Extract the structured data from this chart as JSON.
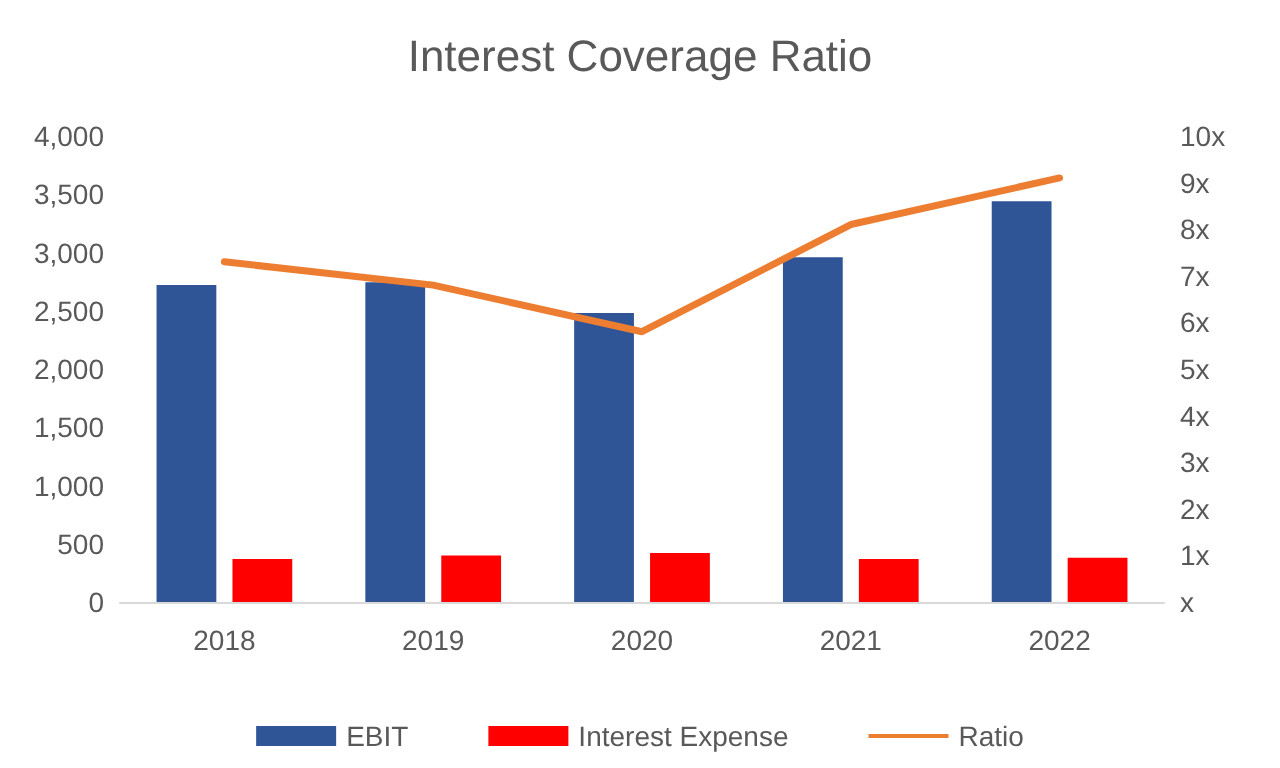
{
  "chart_data": {
    "type": "bar",
    "title": "Interest Coverage Ratio",
    "categories": [
      "2018",
      "2019",
      "2020",
      "2021",
      "2022"
    ],
    "series": [
      {
        "name": "EBIT",
        "color": "#2f5597",
        "values": [
          2720,
          2745,
          2480,
          2960,
          3440
        ]
      },
      {
        "name": "Interest Expense",
        "color": "#ff0000",
        "values": [
          370,
          400,
          420,
          370,
          380
        ]
      },
      {
        "name": "Ratio",
        "type": "line",
        "axis": "y2",
        "color": "#ed7d31",
        "values": [
          7.3,
          6.8,
          5.8,
          8.1,
          9.1
        ]
      }
    ],
    "ylim": [
      0,
      4000
    ],
    "yticks": [
      {
        "value": 0,
        "label": "0"
      },
      {
        "value": 500,
        "label": "500"
      },
      {
        "value": 1000,
        "label": "1,000"
      },
      {
        "value": 1500,
        "label": "1,500"
      },
      {
        "value": 2000,
        "label": "2,000"
      },
      {
        "value": 2500,
        "label": "2,500"
      },
      {
        "value": 3000,
        "label": "3,000"
      },
      {
        "value": 3500,
        "label": "3,500"
      },
      {
        "value": 4000,
        "label": "4,000"
      }
    ],
    "y2lim": [
      0,
      10
    ],
    "y2ticks": [
      {
        "value": 0,
        "label": "x"
      },
      {
        "value": 1,
        "label": "1x"
      },
      {
        "value": 2,
        "label": "2x"
      },
      {
        "value": 3,
        "label": "3x"
      },
      {
        "value": 4,
        "label": "4x"
      },
      {
        "value": 5,
        "label": "5x"
      },
      {
        "value": 6,
        "label": "6x"
      },
      {
        "value": 7,
        "label": "7x"
      },
      {
        "value": 8,
        "label": "8x"
      },
      {
        "value": 9,
        "label": "9x"
      },
      {
        "value": 10,
        "label": "10x"
      }
    ],
    "grid": false,
    "legend": "bottom",
    "marker": "none"
  }
}
